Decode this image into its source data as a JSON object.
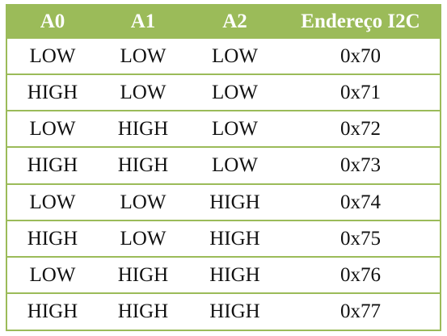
{
  "colors": {
    "header_background": "#9bbb59",
    "header_text": "#ffffff",
    "border": "#9bbb59",
    "cell_text": "#111111"
  },
  "table": {
    "headers": [
      "A0",
      "A1",
      "A2",
      "Endereço I2C"
    ],
    "rows": [
      [
        "LOW",
        "LOW",
        "LOW",
        "0x70"
      ],
      [
        "HIGH",
        "LOW",
        "LOW",
        "0x71"
      ],
      [
        "LOW",
        "HIGH",
        "LOW",
        "0x72"
      ],
      [
        "HIGH",
        "HIGH",
        "LOW",
        "0x73"
      ],
      [
        "LOW",
        "LOW",
        "HIGH",
        "0x74"
      ],
      [
        "HIGH",
        "LOW",
        "HIGH",
        "0x75"
      ],
      [
        "LOW",
        "HIGH",
        "HIGH",
        "0x76"
      ],
      [
        "HIGH",
        "HIGH",
        "HIGH",
        "0x77"
      ]
    ]
  }
}
